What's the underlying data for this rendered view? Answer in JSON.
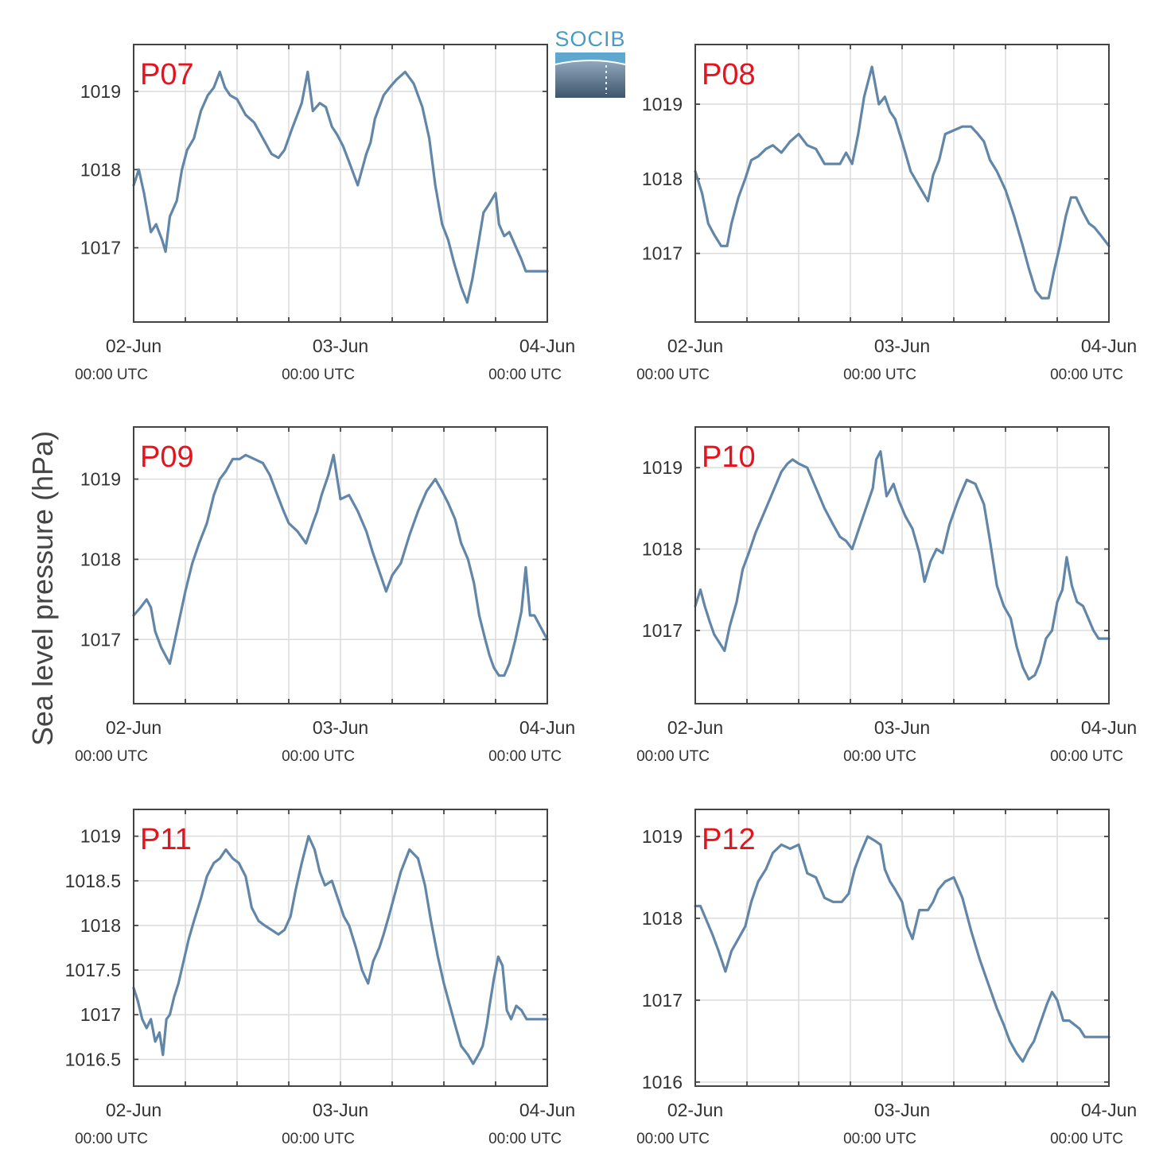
{
  "ylabel": "Sea level pressure (hPa)",
  "logo": {
    "text": "SOCIB"
  },
  "x_tick_labels": [
    "02-Jun",
    "03-Jun",
    "04-Jun"
  ],
  "x_tick_sublabel": "00:00 UTC",
  "chart_data": [
    {
      "type": "line",
      "title": "P07",
      "x_unit": "hours since 02-Jun 00:00 UTC",
      "xlim": [
        0,
        48
      ],
      "ylim": [
        1016.05,
        1019.6
      ],
      "yticks": [
        1017,
        1018,
        1019
      ],
      "ytick_labels": [
        "1017",
        "1018",
        "1019"
      ],
      "x": [
        0,
        0.6,
        1.2,
        2,
        2.6,
        3.3,
        3.7,
        4.2,
        5,
        5.6,
        6.2,
        7,
        7.8,
        8.6,
        9.3,
        10,
        10.6,
        11.2,
        12,
        13,
        14,
        15,
        16,
        16.8,
        17.5,
        18.3,
        19.5,
        20.2,
        20.8,
        21.6,
        22.3,
        23,
        23.6,
        24.3,
        25,
        26,
        27,
        27.5,
        28,
        29,
        29.7,
        30.5,
        31.5,
        32.5,
        33.5,
        34.3,
        35,
        35.8,
        36.5,
        37.2,
        38,
        38.7,
        39.3,
        40,
        40.6,
        41.2,
        42,
        42.4,
        43,
        43.6,
        44.2,
        45,
        45.5,
        46,
        46.3,
        46.8,
        47.3,
        48
      ],
      "y": [
        1017.8,
        1018,
        1017.7,
        1017.2,
        1017.3,
        1017.1,
        1016.95,
        1017.4,
        1017.6,
        1018,
        1018.25,
        1018.4,
        1018.75,
        1018.95,
        1019.05,
        1019.25,
        1019.05,
        1018.95,
        1018.9,
        1018.7,
        1018.6,
        1018.4,
        1018.2,
        1018.15,
        1018.25,
        1018.5,
        1018.85,
        1019.25,
        1018.75,
        1018.85,
        1018.8,
        1018.55,
        1018.45,
        1018.3,
        1018.1,
        1017.8,
        1018.2,
        1018.35,
        1018.65,
        1018.95,
        1019.05,
        1019.15,
        1019.25,
        1019.1,
        1018.8,
        1018.4,
        1017.8,
        1017.3,
        1017.1,
        1016.8,
        1016.5,
        1016.3,
        1016.6,
        1017.05,
        1017.45,
        1017.55,
        1017.7,
        1017.3,
        1017.15,
        1017.2,
        1017.05,
        1016.85,
        1016.7,
        1016.7,
        1016.7,
        1016.7,
        1016.7,
        1016.7
      ]
    },
    {
      "type": "line",
      "title": "P08",
      "x_unit": "hours since 02-Jun 00:00 UTC",
      "xlim": [
        0,
        48
      ],
      "ylim": [
        1016.08,
        1019.8
      ],
      "yticks": [
        1017,
        1018,
        1019
      ],
      "ytick_labels": [
        "1017",
        "1018",
        "1019"
      ],
      "x": [
        0,
        0.8,
        1.5,
        2.2,
        3,
        3.7,
        4.2,
        5,
        5.8,
        6.5,
        7.3,
        8.2,
        9,
        10,
        11,
        12,
        13,
        14,
        15,
        16,
        16.8,
        17.5,
        18.2,
        18.9,
        19.6,
        20.5,
        21.3,
        22,
        22.6,
        23.2,
        24,
        25,
        26,
        27,
        27.6,
        28.3,
        29,
        30,
        31,
        32,
        32.8,
        33.5,
        34.2,
        35,
        36,
        37,
        38,
        38.7,
        39.5,
        40.2,
        41,
        41.6,
        42.3,
        43,
        43.6,
        44.2,
        45,
        45.7,
        46.3,
        47,
        48
      ],
      "y": [
        1018.1,
        1017.8,
        1017.4,
        1017.25,
        1017.1,
        1017.1,
        1017.4,
        1017.75,
        1018,
        1018.25,
        1018.3,
        1018.4,
        1018.45,
        1018.35,
        1018.5,
        1018.6,
        1018.45,
        1018.4,
        1018.2,
        1018.2,
        1018.2,
        1018.35,
        1018.2,
        1018.6,
        1019.1,
        1019.5,
        1019,
        1019.1,
        1018.9,
        1018.8,
        1018.5,
        1018.1,
        1017.9,
        1017.7,
        1018.05,
        1018.25,
        1018.6,
        1018.65,
        1018.7,
        1018.7,
        1018.6,
        1018.5,
        1018.25,
        1018.1,
        1017.85,
        1017.5,
        1017.1,
        1016.8,
        1016.5,
        1016.4,
        1016.4,
        1016.75,
        1017.1,
        1017.5,
        1017.75,
        1017.75,
        1017.55,
        1017.4,
        1017.35,
        1017.25,
        1017.1
      ]
    },
    {
      "type": "line",
      "title": "P09",
      "x_unit": "hours since 02-Jun 00:00 UTC",
      "xlim": [
        0,
        48
      ],
      "ylim": [
        1016.2,
        1019.65
      ],
      "yticks": [
        1017,
        1018,
        1019
      ],
      "ytick_labels": [
        "1017",
        "1018",
        "1019"
      ],
      "x": [
        0,
        0.8,
        1.5,
        2,
        2.5,
        3.2,
        3.7,
        4.2,
        5,
        6,
        6.8,
        7.6,
        8.5,
        9.3,
        10,
        10.7,
        11.5,
        12.3,
        13,
        14,
        15,
        15.8,
        16.5,
        17.4,
        18,
        19,
        20,
        20.8,
        21.3,
        21.8,
        22.6,
        23.2,
        24,
        25,
        26,
        27,
        27.7,
        28.5,
        29.3,
        30,
        31,
        32,
        33,
        34,
        35,
        35.8,
        36.5,
        37.3,
        38,
        38.8,
        39.5,
        40.1,
        40.8,
        41.3,
        41.8,
        42.4,
        43,
        43.6,
        44.3,
        45,
        45.5,
        46,
        46.5,
        47,
        48
      ],
      "y": [
        1017.3,
        1017.4,
        1017.5,
        1017.4,
        1017.1,
        1016.9,
        1016.8,
        1016.7,
        1017.1,
        1017.6,
        1017.95,
        1018.2,
        1018.45,
        1018.8,
        1019,
        1019.1,
        1019.25,
        1019.25,
        1019.3,
        1019.25,
        1019.2,
        1019.05,
        1018.85,
        1018.6,
        1018.45,
        1018.35,
        1018.2,
        1018.45,
        1018.6,
        1018.8,
        1019.05,
        1019.3,
        1018.75,
        1018.8,
        1018.6,
        1018.35,
        1018.1,
        1017.85,
        1017.6,
        1017.8,
        1017.95,
        1018.3,
        1018.6,
        1018.85,
        1019,
        1018.85,
        1018.7,
        1018.5,
        1018.2,
        1018,
        1017.7,
        1017.3,
        1017,
        1016.8,
        1016.65,
        1016.55,
        1016.55,
        1016.7,
        1017,
        1017.35,
        1017.9,
        1017.3,
        1017.3,
        1017.2,
        1017
      ]
    },
    {
      "type": "line",
      "title": "P10",
      "x_unit": "hours since 02-Jun 00:00 UTC",
      "xlim": [
        0,
        48
      ],
      "ylim": [
        1016.1,
        1019.5
      ],
      "yticks": [
        1017,
        1018,
        1019
      ],
      "ytick_labels": [
        "1017",
        "1018",
        "1019"
      ],
      "x": [
        0,
        0.6,
        1.1,
        1.7,
        2.2,
        2.8,
        3.4,
        4,
        4.8,
        5.5,
        6.2,
        7,
        8,
        9,
        10,
        10.7,
        11.3,
        12,
        13,
        14,
        15,
        16,
        16.8,
        17.5,
        18.2,
        19,
        19.8,
        20.6,
        21,
        21.5,
        22.2,
        23,
        23.6,
        24.4,
        25.2,
        26,
        26.6,
        27.3,
        28,
        28.7,
        29.5,
        30.5,
        31.5,
        32.5,
        33.5,
        34.2,
        35,
        35.8,
        36.6,
        37.3,
        38,
        38.7,
        39.4,
        40,
        40.7,
        41.4,
        42,
        42.6,
        43.1,
        43.7,
        44.3,
        45,
        45.6,
        46.2,
        46.8,
        47.4,
        48
      ],
      "y": [
        1017.3,
        1017.5,
        1017.3,
        1017.1,
        1016.95,
        1016.85,
        1016.75,
        1017.05,
        1017.35,
        1017.75,
        1017.95,
        1018.2,
        1018.45,
        1018.7,
        1018.95,
        1019.05,
        1019.1,
        1019.05,
        1019,
        1018.75,
        1018.5,
        1018.3,
        1018.15,
        1018.1,
        1018,
        1018.25,
        1018.5,
        1018.75,
        1019.1,
        1019.2,
        1018.65,
        1018.8,
        1018.6,
        1018.4,
        1018.25,
        1017.95,
        1017.6,
        1017.85,
        1018,
        1017.95,
        1018.3,
        1018.6,
        1018.85,
        1018.8,
        1018.55,
        1018.1,
        1017.55,
        1017.3,
        1017.15,
        1016.8,
        1016.55,
        1016.4,
        1016.45,
        1016.6,
        1016.9,
        1017,
        1017.35,
        1017.5,
        1017.9,
        1017.55,
        1017.35,
        1017.3,
        1017.15,
        1017,
        1016.9,
        1016.9,
        1016.9
      ]
    },
    {
      "type": "line",
      "title": "P11",
      "x_unit": "hours since 02-Jun 00:00 UTC",
      "xlim": [
        0,
        48
      ],
      "ylim": [
        1016.2,
        1019.3
      ],
      "yticks": [
        1016.5,
        1017,
        1017.5,
        1018,
        1018.5,
        1019
      ],
      "ytick_labels": [
        "1016.5",
        "1017",
        "1017.5",
        "1018",
        "1018.5",
        "1019"
      ],
      "x": [
        0,
        0.5,
        1,
        1.5,
        2,
        2.5,
        3,
        3.4,
        3.8,
        4.2,
        4.7,
        5.2,
        5.8,
        6.4,
        7,
        7.8,
        8.5,
        9.3,
        10,
        10.7,
        11.5,
        12.2,
        13,
        13.7,
        14.5,
        15.2,
        16,
        16.8,
        17.5,
        18.2,
        18.8,
        19.5,
        20.3,
        21,
        21.6,
        22.2,
        23,
        23.7,
        24.4,
        25,
        25.8,
        26.5,
        27.2,
        27.8,
        28.5,
        29,
        29.6,
        30.3,
        31,
        32,
        33,
        33.8,
        34.5,
        35.3,
        36,
        36.7,
        37.4,
        38,
        38.8,
        39.4,
        40,
        40.5,
        41,
        41.3,
        41.8,
        42.3,
        42.8,
        43.3,
        43.8,
        44.4,
        45,
        45.6,
        46.2,
        46.8,
        47.4,
        48
      ],
      "y": [
        1017.3,
        1017.15,
        1016.95,
        1016.85,
        1016.95,
        1016.7,
        1016.8,
        1016.55,
        1016.95,
        1017,
        1017.2,
        1017.35,
        1017.6,
        1017.85,
        1018.05,
        1018.3,
        1018.55,
        1018.7,
        1018.75,
        1018.85,
        1018.75,
        1018.7,
        1018.55,
        1018.2,
        1018.05,
        1018,
        1017.95,
        1017.9,
        1017.95,
        1018.1,
        1018.4,
        1018.7,
        1019,
        1018.85,
        1018.6,
        1018.45,
        1018.5,
        1018.3,
        1018.1,
        1018,
        1017.75,
        1017.5,
        1017.35,
        1017.6,
        1017.75,
        1017.9,
        1018.1,
        1018.35,
        1018.6,
        1018.85,
        1018.75,
        1018.45,
        1018.05,
        1017.65,
        1017.35,
        1017.1,
        1016.85,
        1016.65,
        1016.55,
        1016.45,
        1016.55,
        1016.65,
        1016.9,
        1017.1,
        1017.4,
        1017.65,
        1017.55,
        1017.05,
        1016.95,
        1017.1,
        1017.05,
        1016.95,
        1016.95,
        1016.95,
        1016.95,
        1016.95
      ]
    },
    {
      "type": "line",
      "title": "P12",
      "x_unit": "hours since 02-Jun 00:00 UTC",
      "xlim": [
        0,
        48
      ],
      "ylim": [
        1015.95,
        1019.33
      ],
      "yticks": [
        1016,
        1017,
        1018,
        1019
      ],
      "ytick_labels": [
        "1016",
        "1017",
        "1018",
        "1019"
      ],
      "x": [
        0,
        0.6,
        1.2,
        2,
        2.7,
        3.5,
        4.2,
        5,
        5.8,
        6.5,
        7.3,
        8.2,
        9,
        10,
        11,
        12,
        13,
        14,
        15,
        16,
        17,
        17.8,
        18.5,
        19.2,
        20,
        20.8,
        21.5,
        22,
        22.6,
        23.2,
        24,
        24.6,
        25.2,
        26,
        27,
        27.6,
        28.2,
        29,
        30,
        31,
        32,
        33,
        34,
        35,
        35.8,
        36.5,
        37.3,
        38,
        38.7,
        39.3,
        39.8,
        40.3,
        40.8,
        41.4,
        42,
        42.7,
        43.4,
        44,
        44.6,
        45.2,
        46,
        46.6,
        47.2,
        48
      ],
      "y": [
        1018.15,
        1018.15,
        1018,
        1017.8,
        1017.6,
        1017.35,
        1017.6,
        1017.75,
        1017.9,
        1018.2,
        1018.45,
        1018.6,
        1018.8,
        1018.9,
        1018.85,
        1018.9,
        1018.55,
        1018.5,
        1018.25,
        1018.2,
        1018.2,
        1018.3,
        1018.6,
        1018.8,
        1019,
        1018.95,
        1018.9,
        1018.6,
        1018.45,
        1018.35,
        1018.2,
        1017.9,
        1017.75,
        1018.1,
        1018.1,
        1018.2,
        1018.35,
        1018.45,
        1018.5,
        1018.25,
        1017.85,
        1017.5,
        1017.2,
        1016.9,
        1016.7,
        1016.5,
        1016.35,
        1016.25,
        1016.4,
        1016.5,
        1016.65,
        1016.8,
        1016.95,
        1017.1,
        1017,
        1016.75,
        1016.75,
        1016.7,
        1016.65,
        1016.55,
        1016.55,
        1016.55,
        1016.55,
        1016.55
      ]
    }
  ]
}
